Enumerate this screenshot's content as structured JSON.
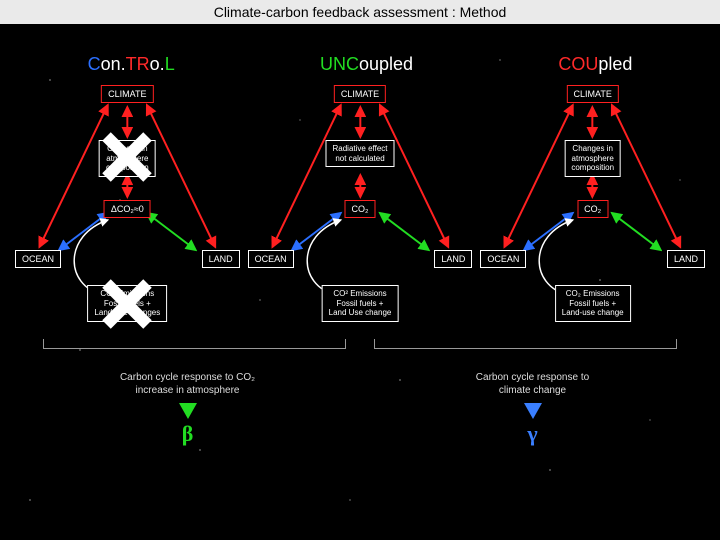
{
  "header": {
    "title": "Climate-carbon feedback assessment : Method"
  },
  "columns": [
    {
      "title_parts": [
        {
          "t": "C",
          "c": "#2b6fff"
        },
        {
          "t": "on.",
          "c": "#ffffff"
        },
        {
          "t": "TR",
          "c": "#ff2a2a"
        },
        {
          "t": "o.",
          "c": "#ffffff"
        },
        {
          "t": "L",
          "c": "#22dd22"
        }
      ],
      "climate": "CLIMATE",
      "rad_lines": [
        "Changes in",
        "atmosphere",
        "composition"
      ],
      "co2": "ΔCO₂≈0",
      "ocean": "OCEAN",
      "land": "LAND",
      "emis_lines": [
        "CO₂ Emissions",
        "Fossil fuels +",
        "Land-use changes"
      ],
      "cross_rad": true,
      "cross_emis": true
    },
    {
      "title_parts": [
        {
          "t": "UNC",
          "c": "#22dd22"
        },
        {
          "t": "oupled",
          "c": "#ffffff"
        }
      ],
      "climate": "CLIMATE",
      "rad_lines": [
        "Radiative effect",
        "not calculated"
      ],
      "co2": "CO₂",
      "ocean": "OCEAN",
      "land": "LAND",
      "emis_lines": [
        "CO² Emissions",
        "Fossil fuels +",
        "Land Use change"
      ],
      "cross_rad": false,
      "cross_emis": false
    },
    {
      "title_parts": [
        {
          "t": "COU",
          "c": "#ff2a2a"
        },
        {
          "t": "pled",
          "c": "#ffffff"
        }
      ],
      "climate": "CLIMATE",
      "rad_lines": [
        "Changes in",
        "atmosphere",
        "composition"
      ],
      "co2": "CO₂",
      "ocean": "OCEAN",
      "land": "LAND",
      "emis_lines": [
        "CO₂ Emissions",
        "Fossil fuels +",
        "Land-use change"
      ],
      "cross_rad": false,
      "cross_emis": false
    }
  ],
  "feedback": {
    "beta_lines": [
      "Carbon cycle response to CO₂",
      "increase in atmosphere"
    ],
    "gamma_lines": [
      "Carbon cycle response to",
      "climate change"
    ],
    "beta_symbol": "β",
    "gamma_symbol": "γ",
    "beta_color": "#22dd22",
    "gamma_color": "#3a7fff"
  },
  "colors": {
    "red": "#ff2020",
    "green": "#22dd22",
    "blue": "#2b6fff",
    "white": "#ffffff"
  }
}
